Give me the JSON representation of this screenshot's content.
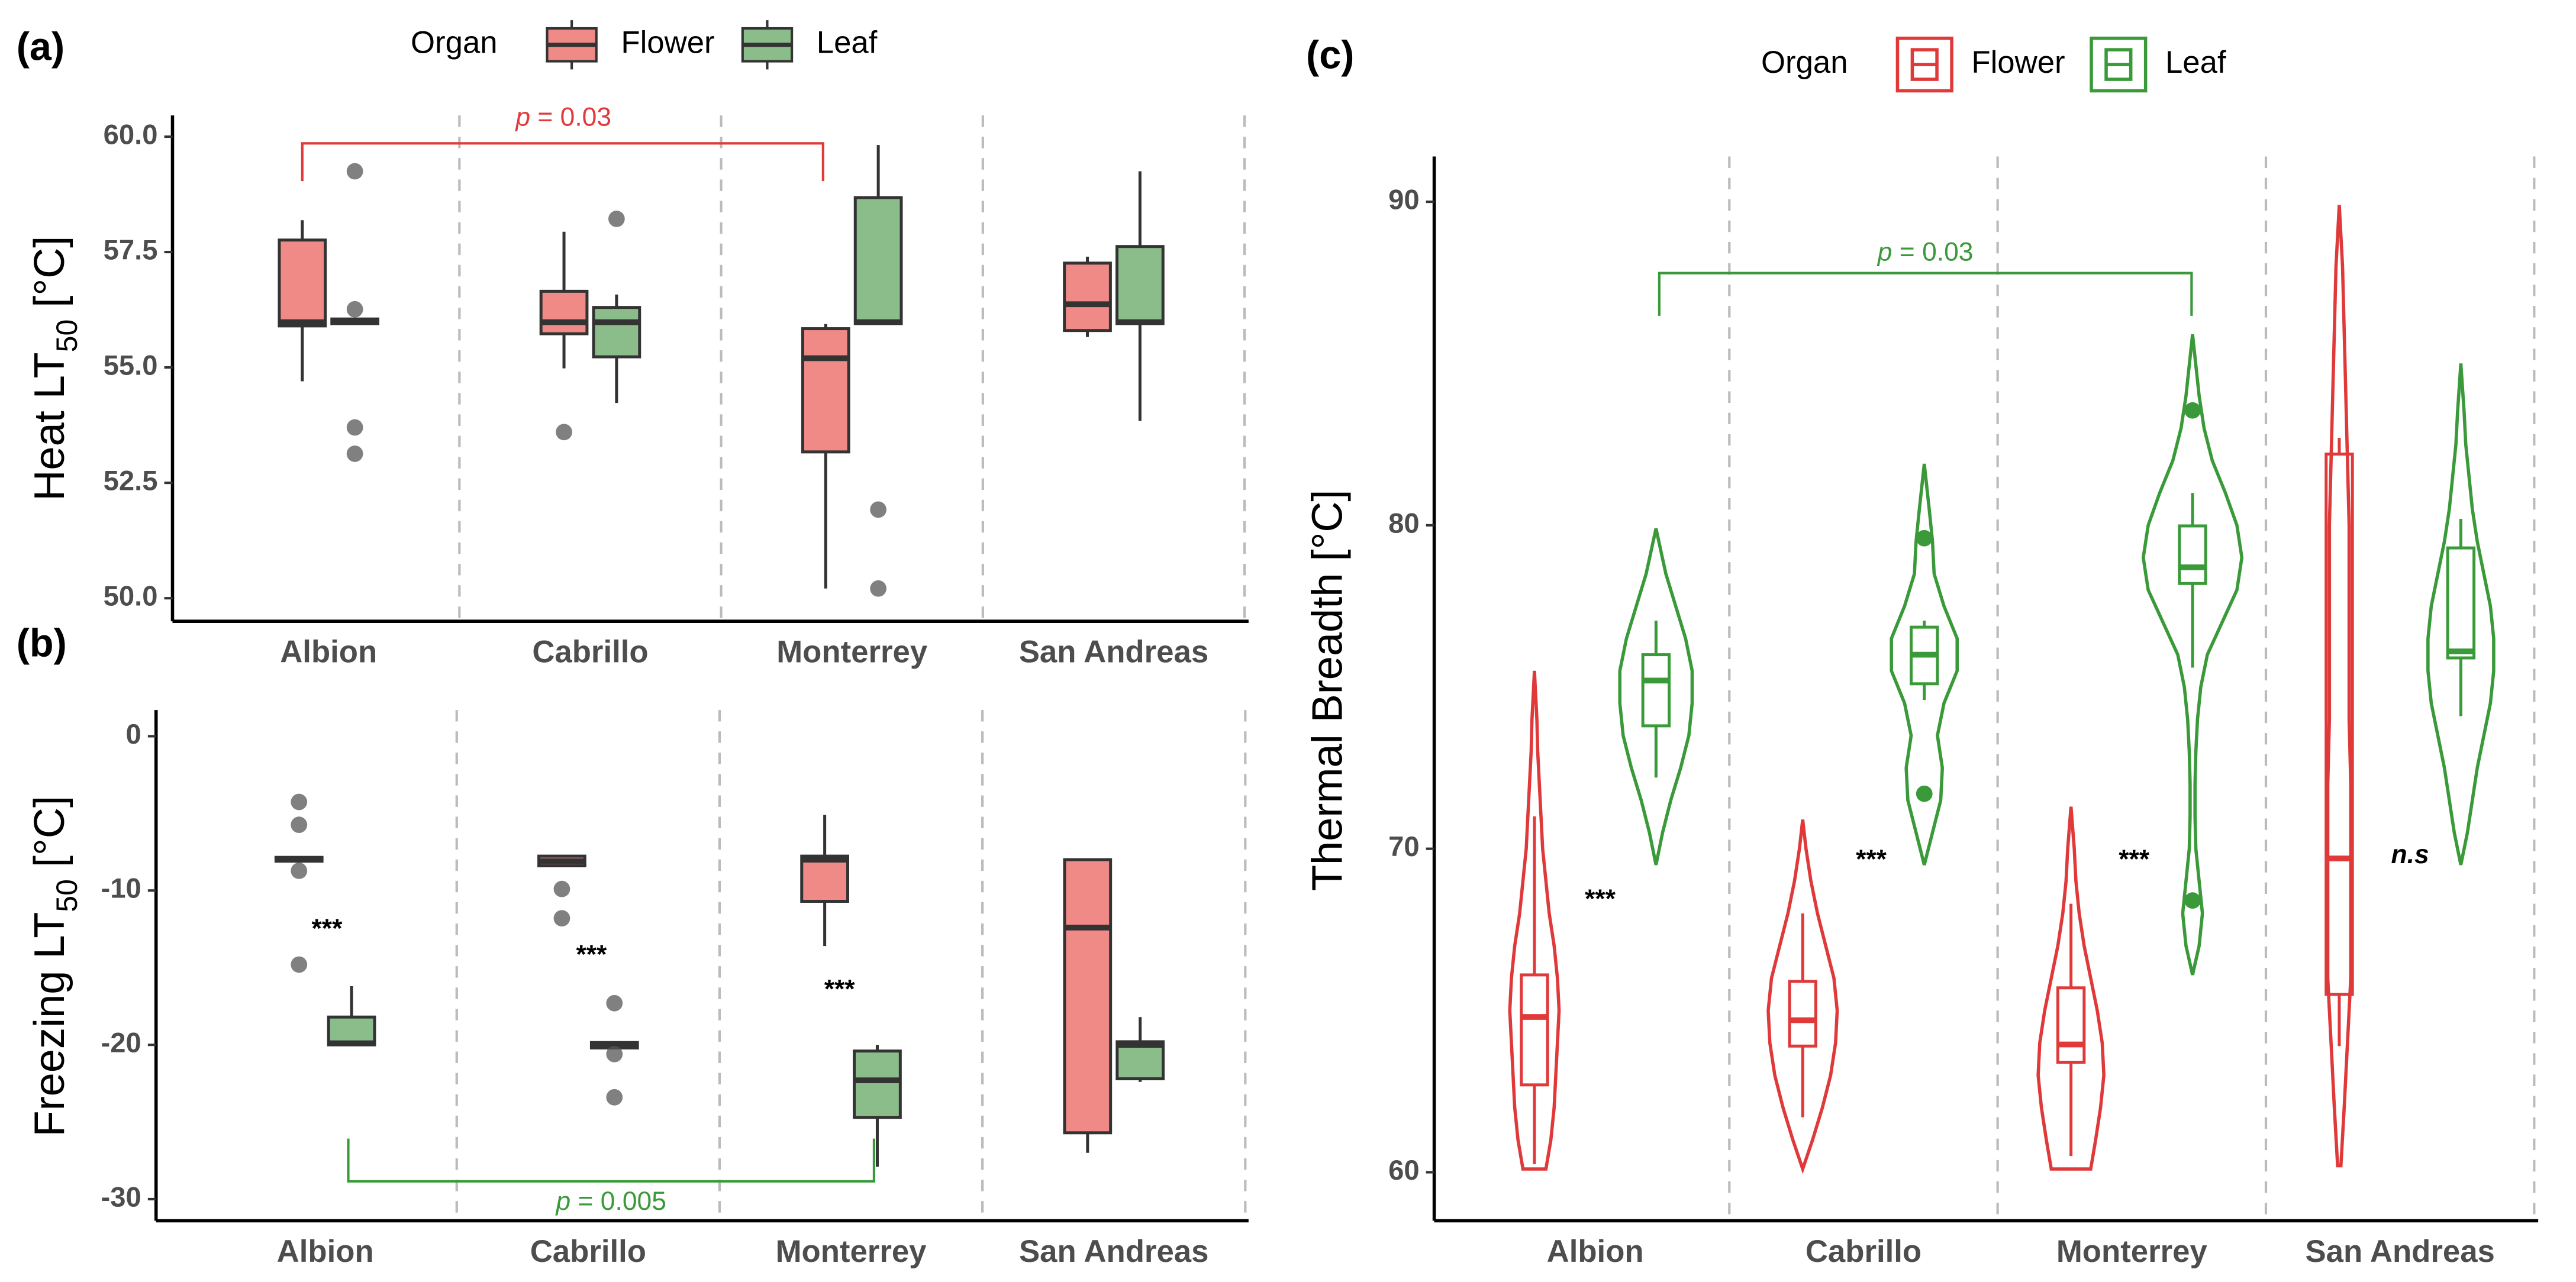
{
  "chart_data": [
    {
      "type": "box",
      "panel_label": "(a)",
      "y_label": [
        "Heat LT",
        "50",
        " [°C]"
      ],
      "legend_title": "Organ",
      "categories": [
        "Albion",
        "Cabrillo",
        "Monterrey",
        "San Andreas"
      ],
      "ylim": [
        49.5,
        60.46
      ],
      "yticks": [
        {
          "value": 50,
          "label": "50.0"
        },
        52.5,
        {
          "value": 55,
          "label": "55.0"
        },
        57.5,
        {
          "value": 60,
          "label": "60.0"
        }
      ],
      "annotation": {
        "italic": "p",
        "text": " = 0.03",
        "color": "#e03a3a"
      },
      "series": [
        {
          "name": "Flower",
          "color": "#f08a87",
          "boxes": [
            {
              "min": 54.7,
              "q1": 55.9,
              "median": 55.98,
              "q3": 57.76,
              "max": 58.19,
              "outliers": []
            },
            {
              "min": 54.98,
              "q1": 55.73,
              "median": 55.98,
              "q3": 56.65,
              "max": 57.94,
              "outliers": [
                53.6
              ]
            },
            {
              "min": 50.21,
              "q1": 53.17,
              "median": 55.2,
              "q3": 55.84,
              "max": 55.94,
              "outliers": []
            },
            {
              "min": 55.66,
              "q1": 55.8,
              "median": 56.37,
              "q3": 57.26,
              "max": 57.4,
              "outliers": []
            }
          ]
        },
        {
          "name": "Leaf",
          "color": "#8bbd8b",
          "boxes": [
            {
              "min": null,
              "q1": 55.95,
              "median": 56.0,
              "q3": 56.05,
              "max": null,
              "outliers": [
                59.25,
                56.26,
                53.7,
                53.13
              ]
            },
            {
              "min": 54.23,
              "q1": 55.23,
              "median": 55.98,
              "q3": 56.3,
              "max": 56.58,
              "outliers": [
                58.22
              ]
            },
            {
              "min": null,
              "q1": 55.95,
              "median": 55.98,
              "q3": 58.68,
              "max": 59.82,
              "outliers": [
                51.92,
                50.21
              ]
            },
            {
              "min": 53.84,
              "q1": 55.95,
              "median": 55.98,
              "q3": 57.62,
              "max": 59.25,
              "outliers": []
            }
          ]
        }
      ]
    },
    {
      "type": "box",
      "panel_label": "(b)",
      "y_label": [
        "Freezing LT",
        "50",
        " [°C]"
      ],
      "categories": [
        "Albion",
        "Cabrillo",
        "Monterrey",
        "San Andreas"
      ],
      "ylim": [
        -31.4,
        1.7
      ],
      "yticks": [
        -30,
        -20,
        -10,
        0
      ],
      "annotation": {
        "italic": "p",
        "text": " = 0.005",
        "color": "#3a9a3a"
      },
      "signif": [
        "***",
        "***",
        "***"
      ],
      "series": [
        {
          "color": "#f08a87",
          "boxes": [
            {
              "min": null,
              "q1": -8.1,
              "median": -8.0,
              "q3": -7.85,
              "max": null,
              "outliers": [
                -4.26,
                -5.74,
                -8.72,
                -14.8
              ]
            },
            {
              "min": null,
              "q1": -8.4,
              "median": -8.1,
              "q3": -7.77,
              "max": null,
              "outliers": [
                -9.9,
                -11.8
              ]
            },
            {
              "min": -13.6,
              "q1": -10.7,
              "median": -8.0,
              "q3": -7.77,
              "max": -5.1,
              "outliers": []
            },
            {
              "min": -27.0,
              "q1": -25.7,
              "median": -12.4,
              "q3": -8.0,
              "max": null,
              "outliers": []
            }
          ]
        },
        {
          "color": "#8bbd8b",
          "boxes": [
            {
              "min": null,
              "q1": -20.0,
              "median": -19.9,
              "q3": -18.2,
              "max": -16.2,
              "outliers": []
            },
            {
              "min": null,
              "q1": -20.2,
              "median": -20.0,
              "q3": -19.85,
              "max": null,
              "outliers": [
                -17.3,
                -20.6,
                -23.4
              ]
            },
            {
              "min": -27.9,
              "q1": -24.7,
              "median": -22.3,
              "q3": -20.4,
              "max": -20.0,
              "outliers": []
            },
            {
              "min": -22.4,
              "q1": -22.2,
              "median": -20.0,
              "q3": -19.8,
              "max": -18.2,
              "outliers": []
            }
          ]
        }
      ]
    },
    {
      "type": "violin",
      "panel_label": "(c)",
      "y_label": [
        "Thermal Breadth [°C]"
      ],
      "legend_title": "Organ",
      "categories": [
        "Albion",
        "Cabrillo",
        "Monterrey",
        "San Andreas"
      ],
      "ylim": [
        58.5,
        91.4
      ],
      "yticks": [
        60,
        70,
        80,
        90
      ],
      "annotation": {
        "italic": "p",
        "text": " = 0.03",
        "color": "#3a9a3a"
      },
      "signif": [
        "***",
        "***",
        "***",
        "n.s"
      ],
      "series": [
        {
          "name": "Flower",
          "color": "#e0393a",
          "boxes": [
            {
              "min": 60.25,
              "q1": 62.7,
              "median": 64.8,
              "q3": 66.1,
              "max": 71.0,
              "outliers": [],
              "violin": {
                "y": [
                  60.1,
                  61,
                  62,
                  63,
                  64,
                  65,
                  66,
                  67,
                  68,
                  69,
                  70,
                  71,
                  72,
                  73,
                  74,
                  75.5
                ],
                "density": [
                  7,
                  10,
                  12,
                  13,
                  14,
                  15,
                  14,
                  12,
                  9,
                  7,
                  5,
                  4,
                  3,
                  2,
                  1.5,
                  0
                ]
              }
            },
            {
              "min": 61.7,
              "q1": 63.9,
              "median": 64.7,
              "q3": 65.9,
              "max": 68.0,
              "outliers": [],
              "violin": {
                "y": [
                  60.1,
                  61,
                  62,
                  63,
                  64,
                  65,
                  66,
                  67,
                  68,
                  69,
                  70,
                  70.9
                ],
                "density": [
                  0,
                  6,
                  12,
                  17,
                  20,
                  21,
                  19,
                  14,
                  9,
                  5,
                  2,
                  0
                ]
              }
            },
            {
              "min": 60.5,
              "q1": 63.4,
              "median": 63.95,
              "q3": 65.7,
              "max": 68.3,
              "outliers": [],
              "violin": {
                "y": [
                  60.1,
                  61,
                  62,
                  63,
                  64,
                  65,
                  66,
                  67,
                  68,
                  69,
                  70,
                  71.3
                ],
                "density": [
                  12,
                  15,
                  18,
                  20,
                  19,
                  16,
                  12,
                  8,
                  5,
                  3,
                  2,
                  0
                ]
              }
            },
            {
              "min": 63.9,
              "q1": 65.5,
              "median": 69.7,
              "q3": 82.2,
              "max": 82.7,
              "outliers": [],
              "violin": {
                "y": [
                  60.2,
                  62,
                  64,
                  66,
                  68,
                  70,
                  72,
                  74,
                  76,
                  78,
                  80,
                  82,
                  84,
                  86,
                  88,
                  89.9
                ],
                "density": [
                  1,
                  3,
                  5,
                  7,
                  7,
                  7,
                  7,
                  6,
                  6,
                  6,
                  6,
                  5,
                  4,
                  3,
                  2,
                  0
                ]
              }
            }
          ]
        },
        {
          "name": "Leaf",
          "color": "#3a9a3a",
          "boxes": [
            {
              "min": 72.2,
              "q1": 73.8,
              "median": 75.2,
              "q3": 76.0,
              "max": 77.05,
              "outliers": [],
              "violin": {
                "y": [
                  69.5,
                  70.5,
                  71.5,
                  72.5,
                  73.5,
                  74.5,
                  75.5,
                  76.5,
                  77.5,
                  78.5,
                  79.9
                ],
                "density": [
                  0,
                  4,
                  9,
                  15,
                  20,
                  22,
                  22,
                  18,
                  12,
                  6,
                  0
                ]
              }
            },
            {
              "min": 74.6,
              "q1": 75.1,
              "median": 76.0,
              "q3": 76.85,
              "max": 77.05,
              "outliers": [
                79.6,
                71.7
              ],
              "violin": {
                "y": [
                  69.5,
                  70.5,
                  71.5,
                  72.5,
                  73.5,
                  74.5,
                  75.5,
                  76.5,
                  77.5,
                  78.5,
                  79.5,
                  80.5,
                  81.9
                ],
                "density": [
                  0,
                  5,
                  10,
                  11,
                  8,
                  12,
                  20,
                  20,
                  12,
                  6,
                  5,
                  3,
                  0
                ]
              }
            },
            {
              "min": 75.6,
              "q1": 78.2,
              "median": 78.7,
              "q3": 79.98,
              "max": 81.0,
              "outliers": [
                83.55,
                68.4
              ],
              "violin": {
                "y": [
                  66.1,
                  67,
                  68,
                  69,
                  70,
                  71,
                  72,
                  73,
                  74,
                  75,
                  76,
                  77,
                  78,
                  79,
                  80,
                  81,
                  82,
                  83,
                  84,
                  85.9
                ],
                "density": [
                  0,
                  4,
                  6,
                  4,
                  2,
                  1.5,
                  1.5,
                  2,
                  3,
                  5,
                  9,
                  18,
                  27,
                  30,
                  27,
                  20,
                  12,
                  7,
                  4,
                  0
                ]
              }
            },
            {
              "min": 74.1,
              "q1": 75.9,
              "median": 76.1,
              "q3": 79.3,
              "max": 80.2,
              "outliers": [],
              "violin": {
                "y": [
                  69.5,
                  70.5,
                  71.5,
                  72.5,
                  73.5,
                  74.5,
                  75.5,
                  76.5,
                  77.5,
                  78.5,
                  79.5,
                  80.5,
                  81.5,
                  82.5,
                  83.5,
                  85
                ],
                "density": [
                  0,
                  4,
                  7,
                  10,
                  14,
                  18,
                  20,
                  20,
                  18,
                  14,
                  10,
                  7,
                  5,
                  3,
                  2,
                  0
                ]
              }
            }
          ]
        }
      ]
    }
  ]
}
